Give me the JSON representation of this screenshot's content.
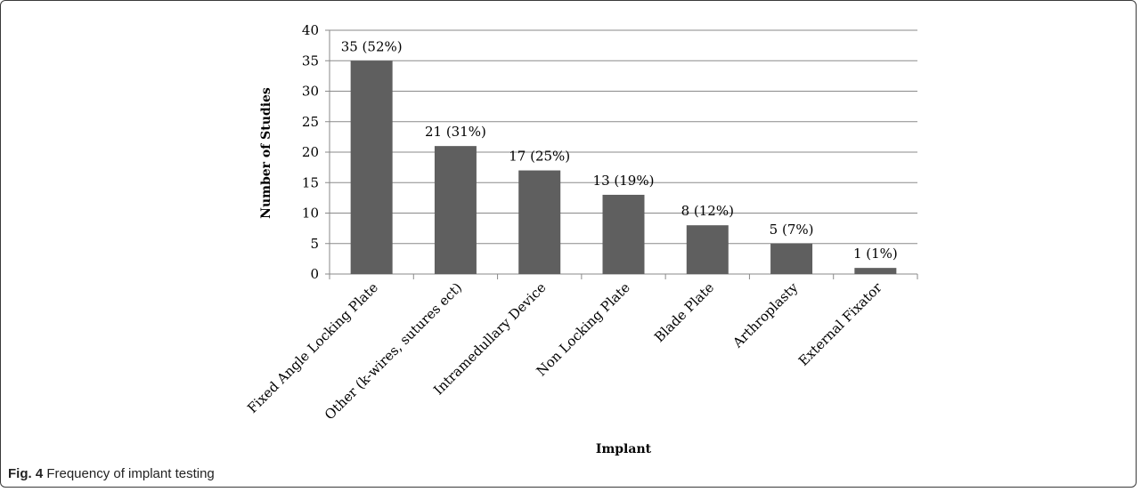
{
  "chart_data": {
    "type": "bar",
    "xlabel": "Implant",
    "ylabel": "Number of Studies",
    "ylim": [
      0,
      40
    ],
    "yticks": [
      0,
      5,
      10,
      15,
      20,
      25,
      30,
      35,
      40
    ],
    "grid": true,
    "bar_color": "#5f5f5f",
    "categories": [
      "Fixed Angle Locking Plate",
      "Other (k-wires, sutures ect)",
      "Intramedullary Device",
      "Non Locking Plate",
      "Blade Plate",
      "Arthroplasty",
      "External Fixator"
    ],
    "values": [
      35,
      21,
      17,
      13,
      8,
      5,
      1
    ],
    "data_labels": [
      "35 (52%)",
      "21 (31%)",
      "17 (25%)",
      "13 (19%)",
      "8 (12%)",
      "5 (7%)",
      "1 (1%)"
    ]
  },
  "caption": {
    "label": "Fig. 4",
    "text": " Frequency of implant testing"
  }
}
